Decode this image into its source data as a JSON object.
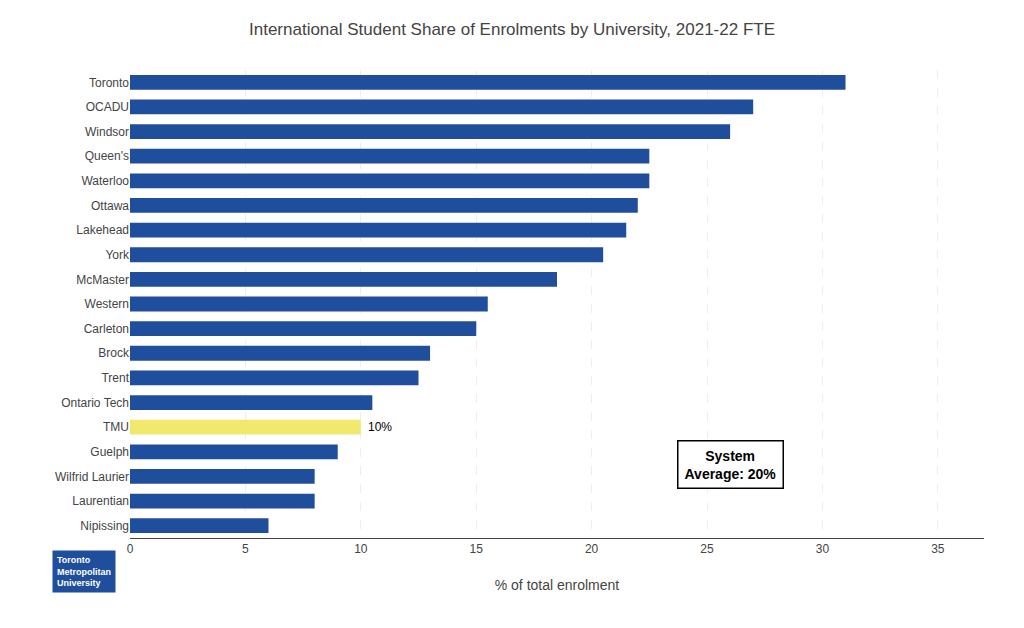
{
  "chart_data": {
    "type": "bar",
    "orientation": "horizontal",
    "title": "International Student Share of Enrolments by University, 2021-22 FTE",
    "categories": [
      "Toronto",
      "OCADU",
      "Windsor",
      "Queen's",
      "Waterloo",
      "Ottawa",
      "Lakehead",
      "York",
      "McMaster",
      "Western",
      "Carleton",
      "Brock",
      "Trent",
      "Ontario Tech",
      "TMU",
      "Guelph",
      "Wilfrid Laurier",
      "Laurentian",
      "Nipissing"
    ],
    "values": [
      31.0,
      27.0,
      26.0,
      22.5,
      22.5,
      22.0,
      21.5,
      20.5,
      18.5,
      15.5,
      15.0,
      13.0,
      12.5,
      10.5,
      10.0,
      9.0,
      8.0,
      8.0,
      6.0
    ],
    "colors": [
      "#1F4E9C",
      "#1F4E9C",
      "#1F4E9C",
      "#1F4E9C",
      "#1F4E9C",
      "#1F4E9C",
      "#1F4E9C",
      "#1F4E9C",
      "#1F4E9C",
      "#1F4E9C",
      "#1F4E9C",
      "#1F4E9C",
      "#1F4E9C",
      "#1F4E9C",
      "#F0E96E",
      "#1F4E9C",
      "#1F4E9C",
      "#1F4E9C",
      "#1F4E9C"
    ],
    "xlabel": "% of total enrolment",
    "xlim": [
      0,
      37
    ],
    "xticks": [
      0,
      5,
      10,
      15,
      20,
      25,
      30,
      35
    ],
    "grid": true,
    "annotations": [
      {
        "text": "10%",
        "category": "TMU"
      },
      {
        "text": "System\nAverage: 20%",
        "x": 26.0,
        "y": 15.5
      },
      {
        "text": "Toronto\nMetropolitan\nUniversity",
        "color": "#1F4E9C"
      }
    ]
  }
}
